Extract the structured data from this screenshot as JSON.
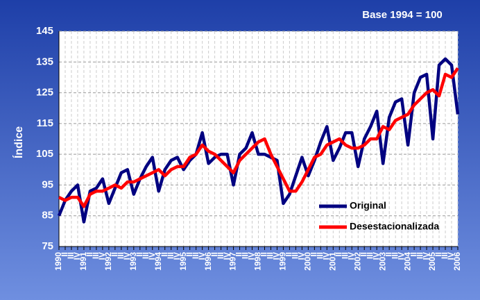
{
  "chart_data": {
    "type": "line",
    "annotation": "Base 1994 = 100",
    "y_label": "Índice",
    "categories": [
      "1990",
      "II",
      "III",
      "IV",
      "1991",
      "II",
      "III",
      "IV",
      "1992",
      "II",
      "III",
      "IV",
      "1993",
      "II",
      "III",
      "IV",
      "1994",
      "II",
      "III",
      "IV",
      "1995",
      "II",
      "III",
      "IV",
      "1996",
      "II",
      "III",
      "IV",
      "1997",
      "II",
      "III",
      "IV",
      "1998",
      "II",
      "III",
      "IV",
      "1999",
      "II",
      "III",
      "IV",
      "2000",
      "II",
      "III",
      "IV",
      "2001",
      "II",
      "III",
      "IV",
      "2002",
      "II",
      "III",
      "IV",
      "2003",
      "II",
      "III",
      "IV",
      "2004",
      "II",
      "III",
      "IV",
      "2005",
      "II",
      "III",
      "IV",
      "2006"
    ],
    "series": [
      {
        "name": "Original",
        "color": "#000080",
        "values": [
          85,
          90,
          93,
          95,
          83,
          93,
          94,
          97,
          89,
          94,
          99,
          100,
          92,
          97,
          101,
          104,
          93,
          100,
          103,
          104,
          100,
          103,
          105,
          112,
          102,
          104,
          105,
          105,
          95,
          105,
          107,
          112,
          105,
          105,
          104,
          103,
          89,
          92,
          98,
          104,
          98,
          103,
          109,
          114,
          103,
          107,
          112,
          112,
          101,
          110,
          114,
          119,
          102,
          117,
          122,
          123,
          108,
          125,
          130,
          131,
          110,
          134,
          136,
          134,
          118
        ]
      },
      {
        "name": "Desestacionalizada",
        "color": "#ff0000",
        "values": [
          91,
          90,
          91,
          91,
          88,
          92,
          93,
          93,
          94,
          95,
          94,
          96,
          96,
          97,
          98,
          99,
          100,
          98,
          100,
          101,
          101,
          104,
          105,
          108,
          106,
          105,
          103,
          101,
          99,
          103,
          105,
          107,
          109,
          110,
          105,
          101,
          97,
          93,
          93,
          96,
          100,
          104,
          105,
          108,
          109,
          110,
          108,
          107,
          107,
          108,
          110,
          110,
          114,
          113,
          116,
          117,
          118,
          121,
          123,
          125,
          126,
          124,
          131,
          130,
          133
        ]
      }
    ],
    "ylim": [
      75,
      145
    ],
    "yticks": [
      75,
      85,
      95,
      105,
      115,
      125,
      135,
      145
    ],
    "grid": true,
    "legend": "lower right"
  }
}
